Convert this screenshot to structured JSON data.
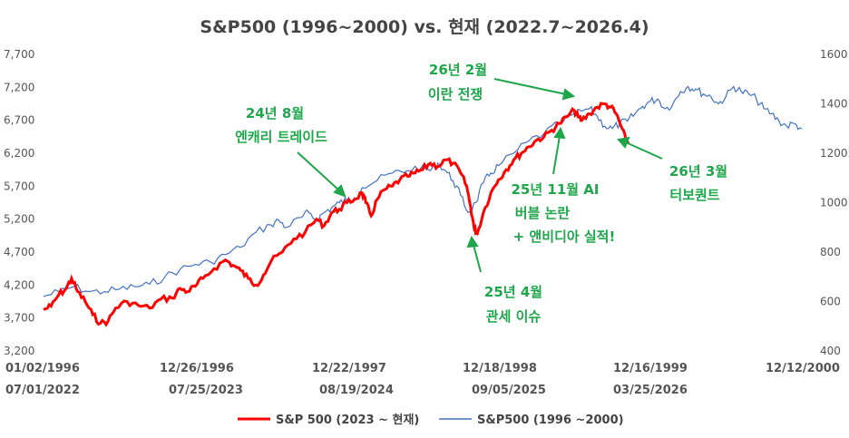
{
  "colors": {
    "red": "#ff0000",
    "blue": "#4472c4",
    "green": "#1ea64a",
    "axis_text": "#555555"
  },
  "chart_data": {
    "type": "line",
    "title": "S&P500 (1996~2000) vs. 현재 (2022.7~2026.4)",
    "left_axis": {
      "ticks": [
        "3,200",
        "3,700",
        "4,200",
        "4,700",
        "5,200",
        "5,700",
        "6,200",
        "6,700",
        "7,200",
        "7,700"
      ],
      "range": [
        3200,
        7700
      ]
    },
    "right_axis": {
      "ticks": [
        "400",
        "600",
        "800",
        "1000",
        "1200",
        "1400",
        "1600"
      ],
      "range": [
        400,
        1600
      ]
    },
    "x_ticks_top": [
      "01/02/1996",
      "12/26/1996",
      "12/22/1997",
      "12/18/1998",
      "12/16/1999",
      "12/12/2000"
    ],
    "x_ticks_bottom": [
      "07/01/2022",
      "07/25/2023",
      "08/19/2024",
      "09/05/2025",
      "03/25/2026"
    ],
    "series": [
      {
        "name": "S&P 500 (2023 ~ 현재)",
        "axis": "left",
        "color": "#ff0000",
        "points": [
          [
            0.0,
            3825
          ],
          [
            0.01,
            3880
          ],
          [
            0.02,
            4050
          ],
          [
            0.03,
            4150
          ],
          [
            0.037,
            4300
          ],
          [
            0.045,
            4100
          ],
          [
            0.055,
            3950
          ],
          [
            0.065,
            3750
          ],
          [
            0.075,
            3620
          ],
          [
            0.085,
            3650
          ],
          [
            0.095,
            3850
          ],
          [
            0.11,
            3950
          ],
          [
            0.125,
            3890
          ],
          [
            0.14,
            3850
          ],
          [
            0.155,
            3990
          ],
          [
            0.17,
            4000
          ],
          [
            0.18,
            4150
          ],
          [
            0.19,
            4100
          ],
          [
            0.2,
            4180
          ],
          [
            0.21,
            4300
          ],
          [
            0.225,
            4450
          ],
          [
            0.24,
            4580
          ],
          [
            0.25,
            4500
          ],
          [
            0.26,
            4420
          ],
          [
            0.27,
            4300
          ],
          [
            0.28,
            4200
          ],
          [
            0.29,
            4350
          ],
          [
            0.3,
            4560
          ],
          [
            0.315,
            4700
          ],
          [
            0.33,
            4900
          ],
          [
            0.345,
            5000
          ],
          [
            0.36,
            5200
          ],
          [
            0.37,
            5100
          ],
          [
            0.38,
            5300
          ],
          [
            0.39,
            5350
          ],
          [
            0.4,
            5450
          ],
          [
            0.41,
            5500
          ],
          [
            0.42,
            5600
          ],
          [
            0.425,
            5450
          ],
          [
            0.432,
            5250
          ],
          [
            0.44,
            5500
          ],
          [
            0.45,
            5650
          ],
          [
            0.46,
            5700
          ],
          [
            0.47,
            5800
          ],
          [
            0.48,
            5850
          ],
          [
            0.49,
            5900
          ],
          [
            0.5,
            5950
          ],
          [
            0.51,
            6050
          ],
          [
            0.52,
            6000
          ],
          [
            0.53,
            6100
          ],
          [
            0.54,
            6050
          ],
          [
            0.55,
            5900
          ],
          [
            0.558,
            5700
          ],
          [
            0.563,
            5400
          ],
          [
            0.568,
            5060
          ],
          [
            0.572,
            4980
          ],
          [
            0.58,
            5300
          ],
          [
            0.59,
            5600
          ],
          [
            0.6,
            5800
          ],
          [
            0.61,
            5950
          ],
          [
            0.62,
            6100
          ],
          [
            0.63,
            6200
          ],
          [
            0.64,
            6300
          ],
          [
            0.65,
            6400
          ],
          [
            0.66,
            6450
          ],
          [
            0.67,
            6550
          ],
          [
            0.68,
            6650
          ],
          [
            0.69,
            6750
          ],
          [
            0.7,
            6850
          ],
          [
            0.705,
            6750
          ],
          [
            0.71,
            6700
          ],
          [
            0.72,
            6800
          ],
          [
            0.73,
            6900
          ],
          [
            0.74,
            6950
          ],
          [
            0.748,
            6900
          ],
          [
            0.755,
            6800
          ],
          [
            0.762,
            6600
          ],
          [
            0.768,
            6400
          ],
          [
            0.772,
            6350
          ]
        ]
      },
      {
        "name": "S&P500 (1996 ~2000)",
        "axis": "right",
        "color": "#4472c4",
        "points": [
          [
            0.0,
            620
          ],
          [
            0.02,
            640
          ],
          [
            0.04,
            660
          ],
          [
            0.06,
            640
          ],
          [
            0.08,
            640
          ],
          [
            0.1,
            650
          ],
          [
            0.12,
            660
          ],
          [
            0.14,
            670
          ],
          [
            0.16,
            700
          ],
          [
            0.18,
            730
          ],
          [
            0.2,
            750
          ],
          [
            0.22,
            760
          ],
          [
            0.24,
            790
          ],
          [
            0.26,
            820
          ],
          [
            0.28,
            880
          ],
          [
            0.3,
            910
          ],
          [
            0.31,
            930
          ],
          [
            0.32,
            900
          ],
          [
            0.34,
            940
          ],
          [
            0.35,
            960
          ],
          [
            0.36,
            930
          ],
          [
            0.37,
            960
          ],
          [
            0.38,
            980
          ],
          [
            0.39,
            1000
          ],
          [
            0.4,
            1010
          ],
          [
            0.41,
            1020
          ],
          [
            0.42,
            1060
          ],
          [
            0.44,
            1090
          ],
          [
            0.46,
            1120
          ],
          [
            0.48,
            1130
          ],
          [
            0.5,
            1150
          ],
          [
            0.51,
            1130
          ],
          [
            0.52,
            1160
          ],
          [
            0.53,
            1130
          ],
          [
            0.54,
            1090
          ],
          [
            0.55,
            1030
          ],
          [
            0.56,
            960
          ],
          [
            0.57,
            1000
          ],
          [
            0.58,
            1080
          ],
          [
            0.59,
            1120
          ],
          [
            0.6,
            1150
          ],
          [
            0.62,
            1200
          ],
          [
            0.64,
            1250
          ],
          [
            0.66,
            1280
          ],
          [
            0.68,
            1320
          ],
          [
            0.7,
            1360
          ],
          [
            0.72,
            1380
          ],
          [
            0.73,
            1350
          ],
          [
            0.74,
            1310
          ],
          [
            0.75,
            1300
          ],
          [
            0.76,
            1320
          ],
          [
            0.77,
            1330
          ],
          [
            0.78,
            1360
          ],
          [
            0.79,
            1390
          ],
          [
            0.8,
            1410
          ],
          [
            0.81,
            1420
          ],
          [
            0.82,
            1380
          ],
          [
            0.83,
            1400
          ],
          [
            0.84,
            1450
          ],
          [
            0.85,
            1470
          ],
          [
            0.86,
            1460
          ],
          [
            0.87,
            1440
          ],
          [
            0.88,
            1430
          ],
          [
            0.89,
            1400
          ],
          [
            0.9,
            1430
          ],
          [
            0.91,
            1470
          ],
          [
            0.92,
            1450
          ],
          [
            0.93,
            1440
          ],
          [
            0.94,
            1420
          ],
          [
            0.95,
            1380
          ],
          [
            0.96,
            1360
          ],
          [
            0.97,
            1330
          ],
          [
            0.98,
            1310
          ],
          [
            0.99,
            1320
          ],
          [
            1.0,
            1300
          ]
        ]
      }
    ],
    "annotations": [
      {
        "lines": [
          "24년 8월",
          "엔캐리 트레이드"
        ]
      },
      {
        "lines": [
          "26년 2월",
          "이란 전쟁"
        ]
      },
      {
        "lines": [
          "25년 11월 AI",
          "버블 논란",
          "+ 앤비디아 실적!"
        ]
      },
      {
        "lines": [
          "26년 3월",
          "터보퀀트"
        ]
      },
      {
        "lines": [
          "25년 4월",
          "관세 이슈"
        ]
      }
    ]
  }
}
